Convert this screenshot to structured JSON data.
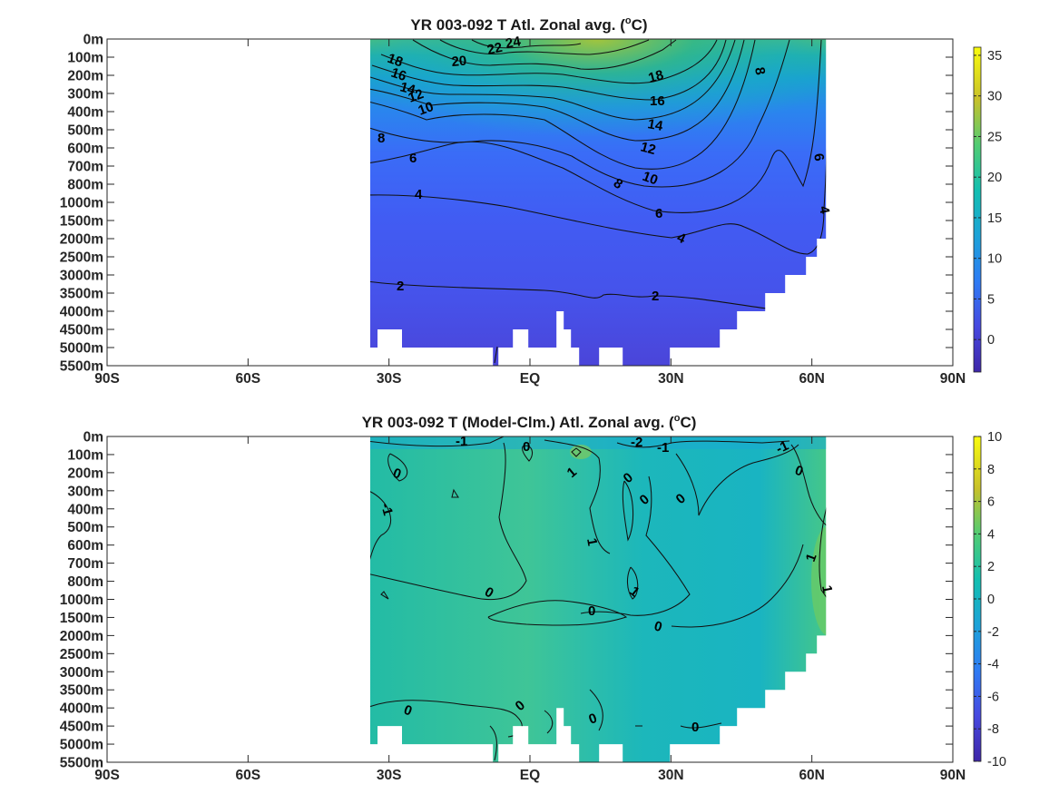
{
  "chart_data": [
    {
      "type": "heatmap",
      "title": "YR 003-092 T Atl. Zonal avg. (",
      "title_sup": "o",
      "title_suffix": "C)",
      "x_ticks": [
        "90S",
        "60S",
        "30S",
        "EQ",
        "30N",
        "60N",
        "90N"
      ],
      "x_values": [
        -90,
        -60,
        -30,
        0,
        30,
        60,
        90
      ],
      "y_ticks": [
        "0m",
        "100m",
        "200m",
        "300m",
        "400m",
        "500m",
        "600m",
        "700m",
        "800m",
        "1000m",
        "1500m",
        "2000m",
        "2500m",
        "3000m",
        "3500m",
        "4000m",
        "4500m",
        "5000m",
        "5500m"
      ],
      "data_extent": {
        "lat_min": -34,
        "lat_max": 63
      },
      "colorbar": {
        "min": -4,
        "max": 36,
        "ticks": [
          "35",
          "30",
          "25",
          "20",
          "15",
          "10",
          "5",
          "0"
        ],
        "tick_values": [
          35,
          30,
          25,
          20,
          15,
          10,
          5,
          0
        ]
      },
      "contour_labels": [
        "24",
        "22",
        "20",
        "18",
        "16",
        "14",
        "12",
        "10",
        "8",
        "6",
        "4",
        "2",
        "18",
        "16",
        "14",
        "12",
        "10",
        "8",
        "6",
        "4",
        "2",
        "8",
        "6",
        "4"
      ],
      "grid": false,
      "colormap": "parula",
      "colors": {
        "low": "#3e26a8",
        "mid": "#13bfb0",
        "high": "#f9fb0e"
      }
    },
    {
      "type": "heatmap",
      "title": "YR 003-092 T (Model-Clm.) Atl. Zonal avg. (",
      "title_sup": "o",
      "title_suffix": "C)",
      "x_ticks": [
        "90S",
        "60S",
        "30S",
        "EQ",
        "30N",
        "60N",
        "90N"
      ],
      "x_values": [
        -90,
        -60,
        -30,
        0,
        30,
        60,
        90
      ],
      "y_ticks": [
        "0m",
        "100m",
        "200m",
        "300m",
        "400m",
        "500m",
        "600m",
        "700m",
        "800m",
        "1000m",
        "1500m",
        "2000m",
        "2500m",
        "3000m",
        "3500m",
        "4000m",
        "4500m",
        "5000m",
        "5500m"
      ],
      "data_extent": {
        "lat_min": -34,
        "lat_max": 63
      },
      "colorbar": {
        "min": -10,
        "max": 10,
        "ticks": [
          "10",
          "8",
          "6",
          "4",
          "2",
          "0",
          "-2",
          "-4",
          "-6",
          "-8",
          "-10"
        ],
        "tick_values": [
          10,
          8,
          6,
          4,
          2,
          0,
          -2,
          -4,
          -6,
          -8,
          -10
        ]
      },
      "contour_labels": [
        "-1",
        "0",
        "-2",
        "-1",
        "-1",
        "0",
        "0",
        "-1",
        "1",
        "0",
        "0",
        "0",
        "1",
        "1",
        "0",
        "0",
        "0",
        "1",
        "1",
        "0",
        "0",
        "0",
        "0"
      ],
      "grid": false,
      "colormap": "parula",
      "colors": {
        "low": "#3e26a8",
        "mid": "#13bfb0",
        "high": "#f9fb0e"
      }
    }
  ]
}
